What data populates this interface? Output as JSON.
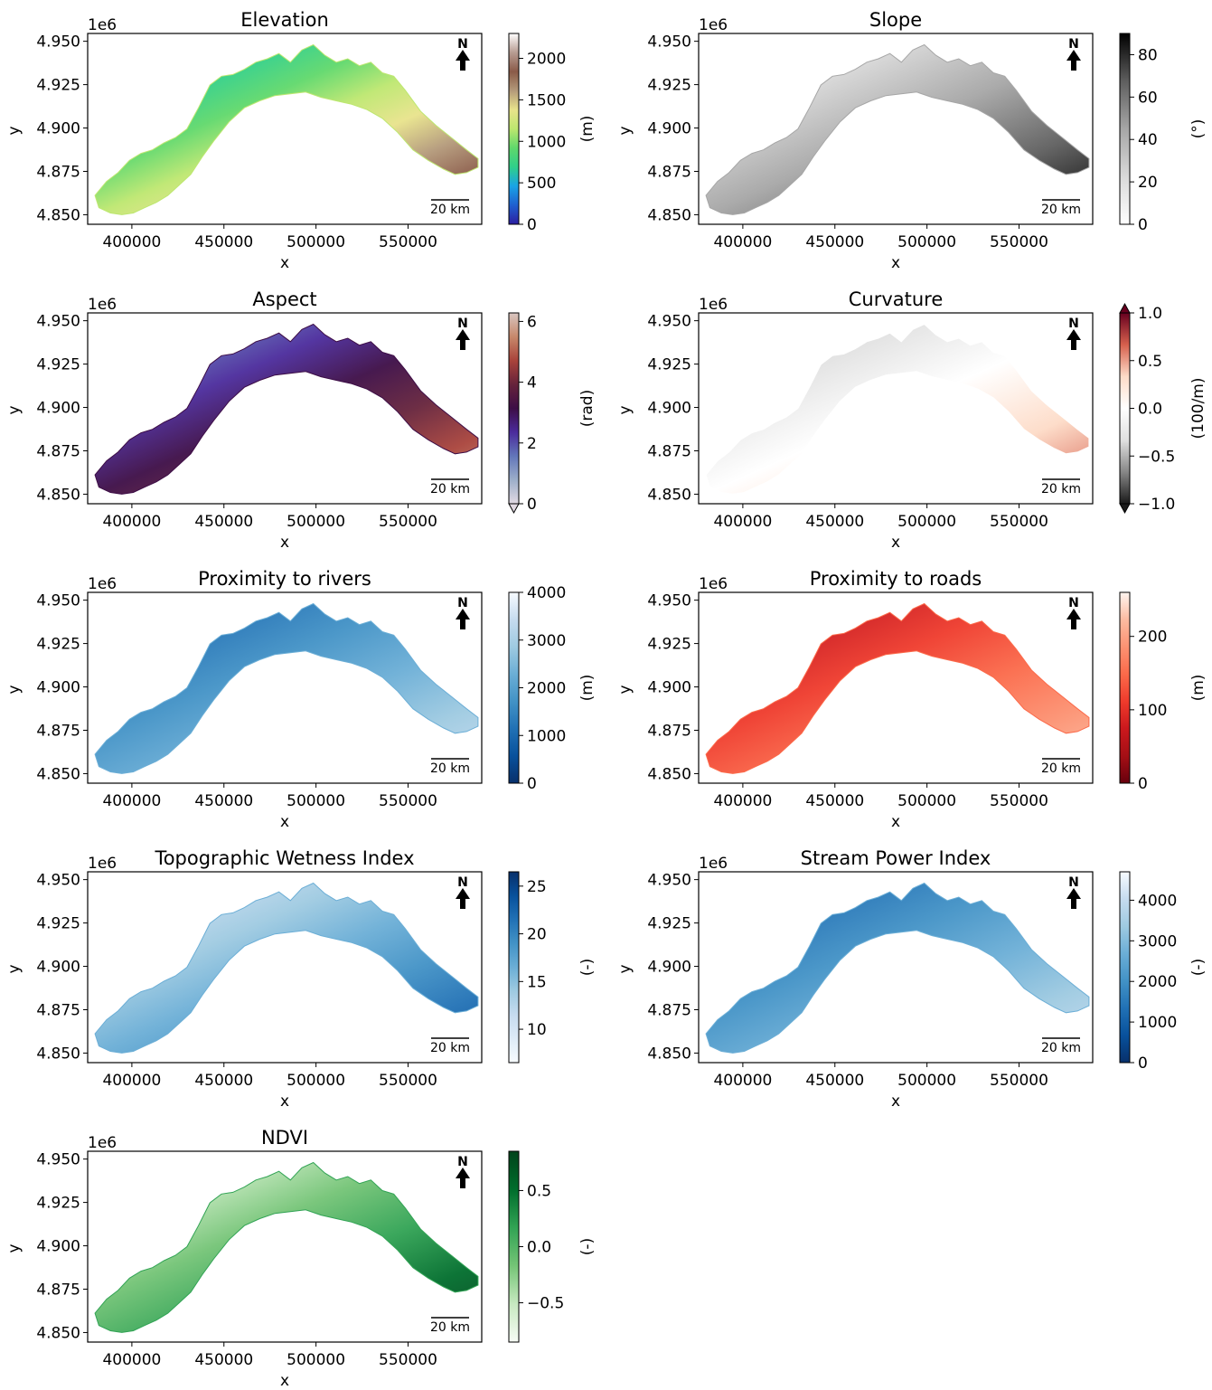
{
  "figure": {
    "panels_per_row": 2,
    "axis_common": {
      "xlabel": "x",
      "ylabel": "y",
      "y_offset_label": "1e6",
      "x_ticks": [
        400000,
        450000,
        500000,
        550000
      ],
      "x_tick_labels": [
        "400000",
        "450000",
        "500000",
        "550000"
      ],
      "xlim": [
        376000,
        590000
      ],
      "y_ticks": [
        4.85,
        4.875,
        4.9,
        4.925,
        4.95
      ],
      "y_tick_labels": [
        "4.850",
        "4.875",
        "4.900",
        "4.925",
        "4.950"
      ],
      "ylim": [
        4.8445,
        4.9545
      ],
      "scalebar_label": "20 km",
      "north_label": "N"
    }
  },
  "chart_data": [
    {
      "type": "heatmap",
      "title": "Elevation",
      "unit": "(m)",
      "colormap": [
        "#2c1ea0",
        "#1f5fd0",
        "#19a3e6",
        "#2fcf8a",
        "#5fd86b",
        "#bde76f",
        "#e8e38b",
        "#b49a7a",
        "#8a5a48",
        "#b79c92",
        "#ffffff"
      ],
      "cbar_range": [
        0,
        2300
      ],
      "cbar_ticks": [
        0,
        500,
        1000,
        1500,
        2000
      ],
      "cbar_tick_labels": [
        "0",
        "500",
        "1000",
        "1500",
        "2000"
      ],
      "extend": "neither"
    },
    {
      "type": "heatmap",
      "title": "Slope",
      "unit": "(°)",
      "colormap": [
        "#ffffff",
        "#d9d9d9",
        "#a6a6a6",
        "#5e5e5e",
        "#000000"
      ],
      "cbar_range": [
        0,
        90
      ],
      "cbar_ticks": [
        0,
        20,
        40,
        60,
        80
      ],
      "cbar_tick_labels": [
        "0",
        "20",
        "40",
        "60",
        "80"
      ],
      "extend": "neither"
    },
    {
      "type": "heatmap",
      "title": "Aspect",
      "unit": "(rad)",
      "colormap": [
        "#e2d9e2",
        "#9caec9",
        "#6276ba",
        "#4b2b9c",
        "#3d0d46",
        "#66233b",
        "#a9433b",
        "#c7886b",
        "#d8c6c1"
      ],
      "cbar_range": [
        0,
        6.28
      ],
      "cbar_ticks": [
        0,
        2,
        4,
        6
      ],
      "cbar_tick_labels": [
        "0",
        "2",
        "4",
        "6"
      ],
      "extend": "min"
    },
    {
      "type": "heatmap",
      "title": "Curvature",
      "unit": "(100/m)",
      "colormap": [
        "#1a1a1a",
        "#878787",
        "#e0e0e0",
        "#ffffff",
        "#fddbc7",
        "#d6604d",
        "#67001f"
      ],
      "cbar_range": [
        -1.0,
        1.0
      ],
      "cbar_ticks": [
        -1.0,
        -0.5,
        0.0,
        0.5,
        1.0
      ],
      "cbar_tick_labels": [
        "−1.0",
        "−0.5",
        "0.0",
        "0.5",
        "1.0"
      ],
      "extend": "both"
    },
    {
      "type": "heatmap",
      "title": "Proximity to rivers",
      "unit": "(m)",
      "colormap": [
        "#08306b",
        "#08519c",
        "#2171b5",
        "#4292c6",
        "#6baed6",
        "#9ecae1",
        "#c6dbef",
        "#f7fbff"
      ],
      "cbar_range": [
        0,
        4000
      ],
      "cbar_ticks": [
        0,
        1000,
        2000,
        3000,
        4000
      ],
      "cbar_tick_labels": [
        "0",
        "1000",
        "2000",
        "3000",
        "4000"
      ],
      "extend": "neither"
    },
    {
      "type": "heatmap",
      "title": "Proximity to roads",
      "unit": "(m)",
      "colormap": [
        "#67000d",
        "#a50f15",
        "#cb181d",
        "#ef3b2c",
        "#fb6a4a",
        "#fc9272",
        "#fcbba1",
        "#fff5f0"
      ],
      "cbar_range": [
        0,
        260
      ],
      "cbar_ticks": [
        0,
        100,
        200
      ],
      "cbar_tick_labels": [
        "0",
        "100",
        "200"
      ],
      "extend": "neither"
    },
    {
      "type": "heatmap",
      "title": "Topographic Wetness Index",
      "unit": "(-)",
      "colormap": [
        "#f7fbff",
        "#deebf7",
        "#c6dbef",
        "#9ecae1",
        "#6baed6",
        "#4292c6",
        "#2171b5",
        "#08519c",
        "#08306b"
      ],
      "cbar_range": [
        6.5,
        26.5
      ],
      "cbar_ticks": [
        10,
        15,
        20,
        25
      ],
      "cbar_tick_labels": [
        "10",
        "15",
        "20",
        "25"
      ],
      "extend": "neither"
    },
    {
      "type": "heatmap",
      "title": "Stream Power Index",
      "unit": "(-)",
      "colormap": [
        "#08306b",
        "#08519c",
        "#2171b5",
        "#4292c6",
        "#6baed6",
        "#9ecae1",
        "#c6dbef",
        "#f7fbff"
      ],
      "cbar_range": [
        0,
        4700
      ],
      "cbar_ticks": [
        0,
        1000,
        2000,
        3000,
        4000
      ],
      "cbar_tick_labels": [
        "0",
        "1000",
        "2000",
        "3000",
        "4000"
      ],
      "extend": "neither"
    },
    {
      "type": "heatmap",
      "title": "NDVI",
      "unit": "(-)",
      "colormap": [
        "#f7fcf5",
        "#c7e9c0",
        "#74c476",
        "#31a354",
        "#006d2c",
        "#00441b"
      ],
      "cbar_range": [
        -0.85,
        0.85
      ],
      "cbar_ticks": [
        -0.5,
        0.0,
        0.5
      ],
      "cbar_tick_labels": [
        "−0.5",
        "0.0",
        "0.5"
      ],
      "extend": "neither"
    }
  ]
}
